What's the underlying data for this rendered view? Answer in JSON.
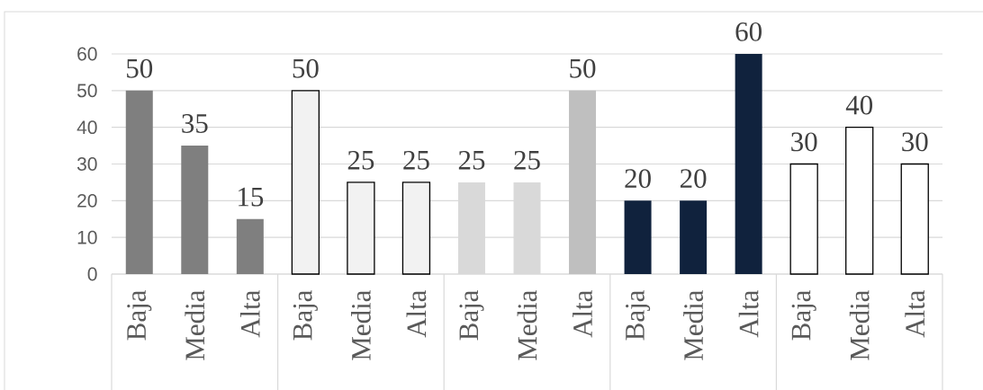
{
  "chart_data": {
    "type": "bar",
    "categories": [
      "Baja",
      "Media",
      "Alta",
      "Baja",
      "Media",
      "Alta",
      "Baja",
      "Media",
      "Alta",
      "Baja",
      "Media",
      "Alta",
      "Baja",
      "Media",
      "Alta"
    ],
    "values": [
      50,
      35,
      15,
      50,
      25,
      25,
      25,
      25,
      50,
      20,
      20,
      60,
      30,
      40,
      30
    ],
    "colors": [
      "#7f7f7f",
      "#7f7f7f",
      "#7f7f7f",
      "#f2f2f2",
      "#f2f2f2",
      "#f2f2f2",
      "#d9d9d9",
      "#d9d9d9",
      "#bfbfbf",
      "#10223d",
      "#10223d",
      "#10223d",
      "#ffffff",
      "#ffffff",
      "#ffffff"
    ],
    "ylim": [
      0,
      60
    ],
    "yticks": [
      0,
      10,
      20,
      30,
      40,
      50,
      60
    ],
    "grid": "y",
    "data_labels": true
  }
}
